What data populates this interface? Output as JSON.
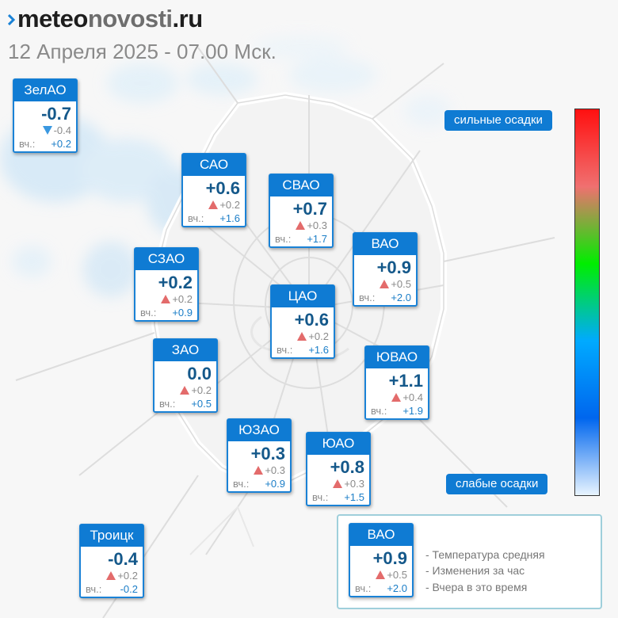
{
  "header": {
    "logo_part1": "meteo",
    "logo_part2": "novosti",
    "logo_part3": ".ru",
    "datetime": "12 Апреля 2025 - 07.00 Мск."
  },
  "colors": {
    "brand": "#0f7bd3",
    "temperature": "#14588a",
    "yesterday": "#1a7dc7",
    "rise": "#e36b6b",
    "fall": "#3a98e0"
  },
  "icons": {
    "rise": "triangle-up",
    "fall": "triangle-down"
  },
  "yesterday_label": "вч.:",
  "districts": [
    {
      "id": "zelao",
      "name": "ЗелАО",
      "temp": "-0.7",
      "dir": "down",
      "change": "-0.4",
      "yesterday": "+0.2"
    },
    {
      "id": "sao",
      "name": "САО",
      "temp": "+0.6",
      "dir": "up",
      "change": "+0.2",
      "yesterday": "+1.6"
    },
    {
      "id": "svao",
      "name": "СВАО",
      "temp": "+0.7",
      "dir": "up",
      "change": "+0.3",
      "yesterday": "+1.7"
    },
    {
      "id": "vao",
      "name": "ВАО",
      "temp": "+0.9",
      "dir": "up",
      "change": "+0.5",
      "yesterday": "+2.0"
    },
    {
      "id": "szao",
      "name": "СЗАО",
      "temp": "+0.2",
      "dir": "up",
      "change": "+0.2",
      "yesterday": "+0.9"
    },
    {
      "id": "cao",
      "name": "ЦАО",
      "temp": "+0.6",
      "dir": "up",
      "change": "+0.2",
      "yesterday": "+1.6"
    },
    {
      "id": "zao",
      "name": "ЗАО",
      "temp": "0.0",
      "dir": "up",
      "change": "+0.2",
      "yesterday": "+0.5"
    },
    {
      "id": "yuvao",
      "name": "ЮВАО",
      "temp": "+1.1",
      "dir": "up",
      "change": "+0.4",
      "yesterday": "+1.9"
    },
    {
      "id": "yuzao",
      "name": "ЮЗАО",
      "temp": "+0.3",
      "dir": "up",
      "change": "+0.3",
      "yesterday": "+0.9"
    },
    {
      "id": "yuao",
      "name": "ЮАО",
      "temp": "+0.8",
      "dir": "up",
      "change": "+0.3",
      "yesterday": "+1.5"
    },
    {
      "id": "troitsk",
      "name": "Троицк",
      "temp": "-0.4",
      "dir": "up",
      "change": "+0.2",
      "yesterday": "-0.2"
    }
  ],
  "precip_scale": {
    "high_label": "сильные осадки",
    "low_label": "слабые осадки",
    "gradient": [
      "#ff1010",
      "#f07070",
      "#00ee00",
      "#00aaff",
      "#0066ee",
      "#e8f4ff"
    ]
  },
  "legend": {
    "sample": {
      "name": "ВАО",
      "temp": "+0.9",
      "dir": "up",
      "change": "+0.5",
      "yesterday": "+2.0"
    },
    "lines": [
      "- Температура средняя",
      "- Изменения за час",
      "- Вчера в это время"
    ]
  }
}
